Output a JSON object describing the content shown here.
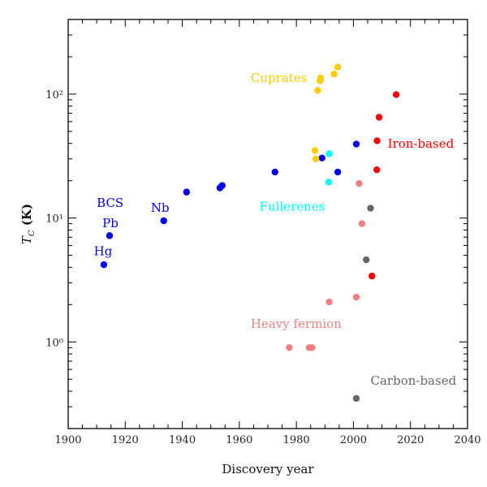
{
  "chart_data": {
    "type": "scatter",
    "title": "",
    "xlabel": "Discovery year",
    "ylabel": "T_C (K)",
    "ylabel_main": "T",
    "ylabel_sub": "C",
    "ylabel_unit": " (K)",
    "xlim": [
      1900,
      2040
    ],
    "ylim": [
      0.2,
      400
    ],
    "yscale": "log",
    "grid": false,
    "x_ticks": [
      1900,
      1920,
      1940,
      1960,
      1980,
      2000,
      2020,
      2040
    ],
    "x_tick_labels": [
      "1900",
      "1920",
      "1940",
      "1960",
      "1980",
      "2000",
      "2020",
      "2040"
    ],
    "y_ticks": [
      1,
      10,
      100
    ],
    "y_tick_labels": [
      "10⁰",
      "10¹",
      "10²"
    ],
    "series": [
      {
        "name": "BCS",
        "color": "#0000ee",
        "points": [
          [
            1912.5,
            4.2
          ],
          [
            1914.5,
            7.2
          ],
          [
            1933.5,
            9.5
          ],
          [
            1941.5,
            16.2
          ],
          [
            1953.2,
            17.5
          ],
          [
            1954.0,
            18.3
          ],
          [
            1972.5,
            23.5
          ],
          [
            1989.0,
            30.5
          ],
          [
            1994.5,
            23.5
          ],
          [
            2001.0,
            39.5
          ]
        ]
      },
      {
        "name": "Cuprates",
        "color": "#ffcc00",
        "points": [
          [
            1986.5,
            35
          ],
          [
            1986.8,
            30
          ],
          [
            1987.5,
            107
          ],
          [
            1988.3,
            128
          ],
          [
            1988.5,
            135
          ],
          [
            1993.2,
            145
          ],
          [
            1994.5,
            165
          ]
        ]
      },
      {
        "name": "Iron-based",
        "color": "#ff0000",
        "points": [
          [
            2006.5,
            3.4
          ],
          [
            2008.2,
            24.5
          ],
          [
            2008.3,
            42
          ],
          [
            2009.0,
            65
          ],
          [
            2015.0,
            99
          ]
        ]
      },
      {
        "name": "Fullerenes",
        "color": "#00ffff",
        "points": [
          [
            1991.3,
            19.5
          ],
          [
            1991.5,
            33
          ]
        ]
      },
      {
        "name": "Heavy fermion",
        "color": "#f08080",
        "points": [
          [
            1977.5,
            0.9
          ],
          [
            1984.5,
            0.9
          ],
          [
            1985.5,
            0.9
          ],
          [
            1991.5,
            2.1
          ],
          [
            2001.0,
            2.3
          ],
          [
            2002.0,
            19
          ],
          [
            2003.0,
            9.0
          ]
        ]
      },
      {
        "name": "Carbon-based",
        "color": "#666666",
        "points": [
          [
            2001.0,
            0.35
          ],
          [
            2004.5,
            4.6
          ],
          [
            2006.0,
            12.0
          ]
        ]
      }
    ],
    "annotations": [
      {
        "text": "BCS",
        "color": "#0000ee",
        "x": 1910,
        "y": 12.3
      },
      {
        "text": "Nb",
        "color": "#0000ee",
        "x": 1929,
        "y": 11.2
      },
      {
        "text": "Pb",
        "color": "#0000ee",
        "x": 1912,
        "y": 8.4
      },
      {
        "text": "Hg",
        "color": "#0000ee",
        "x": 1909,
        "y": 5.0
      },
      {
        "text": "Cuprates",
        "color": "#ffcc00",
        "x": 1964,
        "y": 125
      },
      {
        "text": "Iron-based",
        "color": "#ff0000",
        "x": 2012,
        "y": 37
      },
      {
        "text": "Fullerenes",
        "color": "#00ffff",
        "x": 1967,
        "y": 11.5
      },
      {
        "text": "Heavy fermion",
        "color": "#f08080",
        "x": 1964,
        "y": 1.3
      },
      {
        "text": "Carbon-based",
        "color": "#666666",
        "x": 2006,
        "y": 0.45
      }
    ]
  }
}
